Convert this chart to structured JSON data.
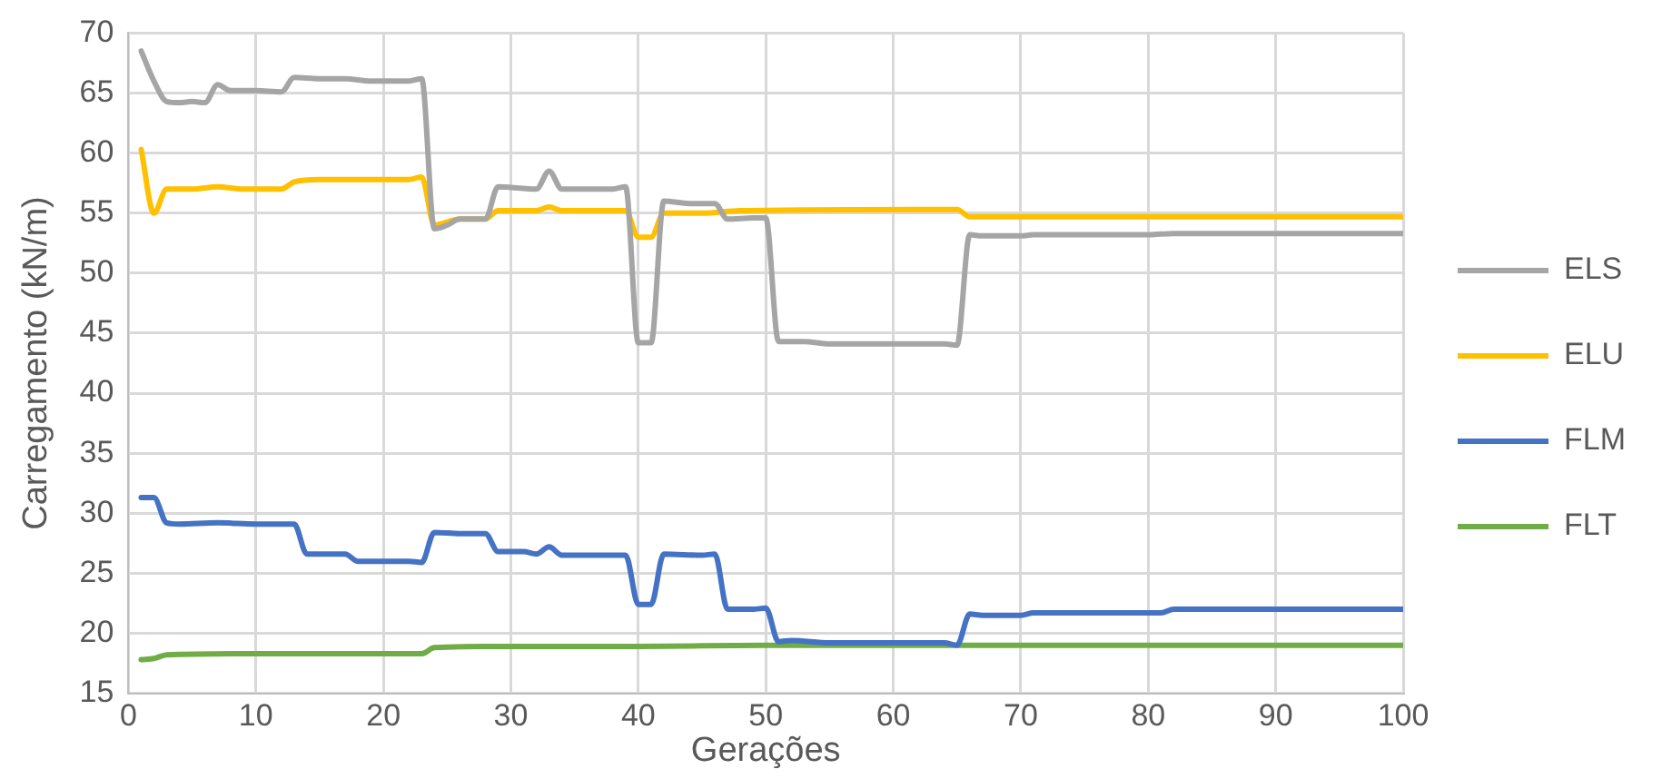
{
  "chart_data": {
    "type": "line",
    "xlabel": "Gerações",
    "ylabel": "Carregamento (kN/m)",
    "xlim": [
      0,
      100
    ],
    "xticks": [
      0,
      10,
      20,
      30,
      40,
      50,
      60,
      70,
      80,
      90,
      100
    ],
    "ylim": [
      15,
      70
    ],
    "yticks": [
      15,
      20,
      25,
      30,
      35,
      40,
      45,
      50,
      55,
      60,
      65,
      70
    ],
    "grid": true,
    "legend": "right",
    "marker": "none",
    "line_style": "solid",
    "series": [
      {
        "name": "ELS",
        "color": "#a5a5a5",
        "x": [
          1,
          2,
          3,
          4,
          5,
          6,
          7,
          8,
          10,
          12,
          13,
          15,
          17,
          19,
          22,
          23,
          24,
          25,
          26,
          28,
          29,
          32,
          33,
          34,
          38,
          39,
          40,
          41,
          42,
          44,
          46,
          47,
          49,
          50,
          51,
          53,
          55,
          60,
          64,
          65,
          66,
          67,
          70,
          71,
          80,
          82,
          100
        ],
        "values": [
          68.5,
          66,
          64.3,
          64.2,
          64.3,
          64.2,
          65.7,
          65.2,
          65.2,
          65.1,
          66.3,
          66.2,
          66.2,
          66,
          66,
          66.2,
          53.7,
          54,
          54.5,
          54.5,
          57.2,
          57,
          58.5,
          57,
          57,
          57.2,
          44.2,
          44.2,
          56,
          55.8,
          55.8,
          54.5,
          54.6,
          54.6,
          44.3,
          44.3,
          44.1,
          44.1,
          44.1,
          44,
          53.2,
          53.1,
          53.1,
          53.2,
          53.2,
          53.3,
          53.3
        ]
      },
      {
        "name": "ELU",
        "color": "#ffc000",
        "x": [
          1,
          2,
          3,
          5,
          7,
          9,
          12,
          13,
          15,
          22,
          23,
          24,
          26,
          28,
          29,
          32,
          33,
          34,
          39,
          40,
          41,
          42,
          45,
          48,
          64,
          65,
          66,
          100
        ],
        "values": [
          60.3,
          55,
          57,
          57,
          57.2,
          57,
          57,
          57.6,
          57.8,
          57.8,
          58,
          54,
          54.5,
          54.5,
          55.2,
          55.2,
          55.5,
          55.2,
          55.2,
          53,
          53,
          55,
          55,
          55.2,
          55.3,
          55.3,
          54.7,
          54.7
        ]
      },
      {
        "name": "FLM",
        "color": "#4472c4",
        "x": [
          1,
          2,
          3,
          4,
          7,
          10,
          13,
          14,
          17,
          18,
          22,
          23,
          24,
          26,
          28,
          29,
          31,
          32,
          33,
          34,
          39,
          40,
          41,
          42,
          45,
          46,
          47,
          49,
          50,
          51,
          52,
          55,
          64,
          65,
          66,
          67,
          70,
          71,
          81,
          82,
          100
        ],
        "values": [
          31.3,
          31.3,
          29.2,
          29.1,
          29.2,
          29.1,
          29.1,
          26.6,
          26.6,
          26,
          26,
          25.9,
          28.4,
          28.3,
          28.3,
          26.8,
          26.8,
          26.6,
          27.2,
          26.5,
          26.5,
          22.4,
          22.4,
          26.6,
          26.5,
          26.6,
          22,
          22,
          22.1,
          19.3,
          19.4,
          19.2,
          19.2,
          19,
          21.6,
          21.5,
          21.5,
          21.7,
          21.7,
          22,
          22
        ]
      },
      {
        "name": "FLT",
        "color": "#70ad47",
        "x": [
          1,
          2,
          3,
          10,
          22,
          23,
          24,
          28,
          40,
          50,
          100
        ],
        "values": [
          17.8,
          17.9,
          18.2,
          18.3,
          18.3,
          18.3,
          18.8,
          18.9,
          18.9,
          19,
          19
        ]
      }
    ]
  }
}
